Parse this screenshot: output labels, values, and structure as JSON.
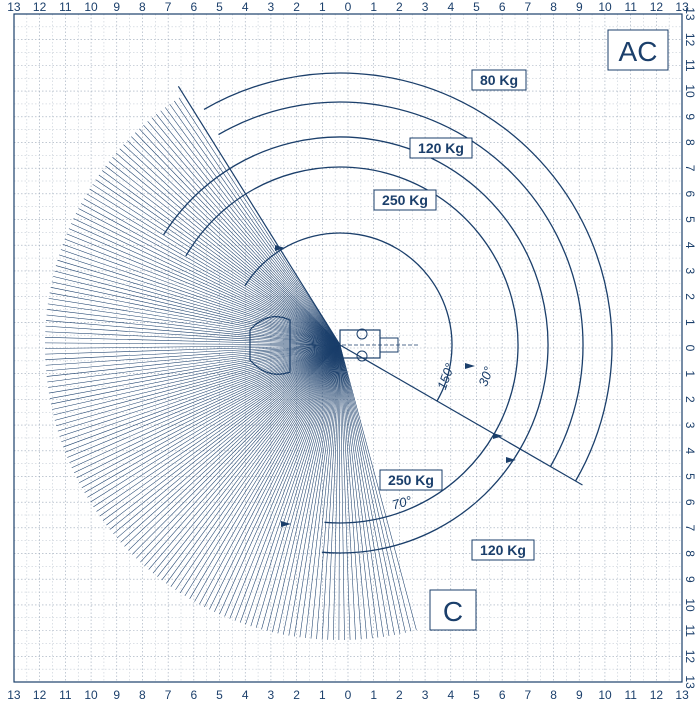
{
  "axis": {
    "x_ticks": [
      "13",
      "12",
      "11",
      "10",
      "9",
      "8",
      "7",
      "6",
      "5",
      "4",
      "3",
      "2",
      "1",
      "0",
      "1",
      "2",
      "3",
      "4",
      "5",
      "6",
      "7",
      "8",
      "9",
      "10",
      "11",
      "12",
      "13"
    ],
    "y_ticks": [
      "13",
      "12",
      "11",
      "10",
      "9",
      "8",
      "7",
      "6",
      "5",
      "4",
      "3",
      "2",
      "1",
      "0",
      "1",
      "2",
      "3",
      "4",
      "5",
      "6",
      "7",
      "8",
      "9",
      "10",
      "11",
      "12",
      "13"
    ]
  },
  "zones": {
    "top_right": "AC",
    "bottom": "C"
  },
  "load_labels": [
    {
      "text": "80 Kg"
    },
    {
      "text": "120 Kg"
    },
    {
      "text": "250 Kg"
    },
    {
      "text": "250 Kg"
    },
    {
      "text": "120 Kg"
    }
  ],
  "angle_labels": [
    "150°",
    "30°",
    "70°"
  ],
  "colors": {
    "ink": "#1b3f6b",
    "grid": "#9aa7b8",
    "background": "#ffffff"
  }
}
